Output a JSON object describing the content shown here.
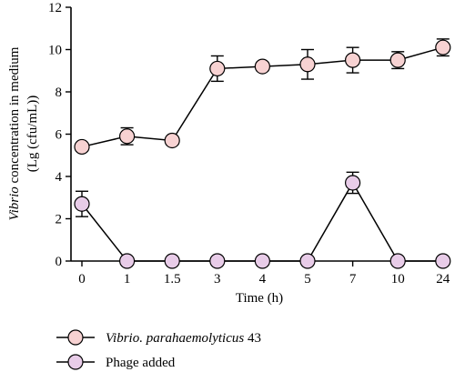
{
  "chart_data": {
    "type": "line",
    "ylabel_italic": "Vibrio",
    "ylabel_rest": " concentration in medium",
    "ylabel_line2": "(Lg (cfu/mL))",
    "xlabel": "Time (h)",
    "categories": [
      "0",
      "1",
      "1.5",
      "3",
      "4",
      "5",
      "7",
      "10",
      "24"
    ],
    "ylim": [
      0,
      12
    ],
    "yticks": [
      "0",
      "2",
      "4",
      "6",
      "8",
      "10",
      "12"
    ],
    "grid": false,
    "legend_position": "bottom-left",
    "series": [
      {
        "name_italic": "Vibrio. parahaemolyticus",
        "name_rest": " 43",
        "color": "#f7d2d2",
        "values": [
          5.4,
          5.9,
          5.7,
          9.1,
          9.2,
          9.3,
          9.5,
          9.5,
          10.1
        ],
        "errors": [
          0.15,
          0.4,
          0.15,
          0.6,
          0.2,
          0.7,
          0.6,
          0.4,
          0.4
        ]
      },
      {
        "name": "Phage added",
        "color": "#e8cce8",
        "values": [
          2.7,
          0,
          0,
          0,
          0,
          0,
          3.7,
          0,
          0
        ],
        "errors": [
          0.6,
          0,
          0,
          0,
          0,
          0,
          0.5,
          0,
          0
        ]
      }
    ]
  }
}
